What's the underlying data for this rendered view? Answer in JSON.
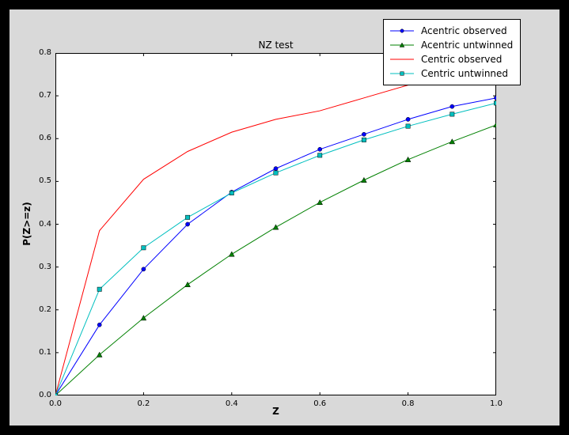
{
  "window": {
    "background_color": "#000000",
    "figure_background_color": "#d9d9d9",
    "plot_background_color": "#ffffff"
  },
  "chart_data": {
    "type": "line",
    "title": "NZ test",
    "xlabel": "Z",
    "ylabel": "P(Z>=z)",
    "xlim": [
      0.0,
      1.0
    ],
    "ylim": [
      0.0,
      0.8
    ],
    "xticks": [
      0.0,
      0.2,
      0.4,
      0.6,
      0.8,
      1.0
    ],
    "yticks": [
      0.0,
      0.1,
      0.2,
      0.3,
      0.4,
      0.5,
      0.6,
      0.7,
      0.8
    ],
    "grid": false,
    "legend_position": "top-right",
    "x": [
      0.0,
      0.1,
      0.2,
      0.3,
      0.4,
      0.5,
      0.6,
      0.7,
      0.8,
      0.9,
      1.0
    ],
    "series": [
      {
        "name": "Acentric observed",
        "color": "#0000ff",
        "marker": "circle",
        "values": [
          0.0,
          0.165,
          0.295,
          0.4,
          0.475,
          0.53,
          0.575,
          0.61,
          0.645,
          0.675,
          0.695
        ]
      },
      {
        "name": "Acentric untwinned",
        "color": "#008000",
        "marker": "triangle",
        "values": [
          0.0,
          0.095,
          0.181,
          0.259,
          0.33,
          0.393,
          0.451,
          0.503,
          0.551,
          0.593,
          0.632
        ]
      },
      {
        "name": "Centric observed",
        "color": "#ff0000",
        "marker": "none",
        "values": [
          0.0,
          0.385,
          0.505,
          0.57,
          0.615,
          0.645,
          0.665,
          0.695,
          0.725,
          0.75,
          0.775
        ]
      },
      {
        "name": "Centric untwinned",
        "color": "#00bfbf",
        "marker": "square",
        "values": [
          0.0,
          0.248,
          0.345,
          0.416,
          0.473,
          0.52,
          0.561,
          0.597,
          0.629,
          0.657,
          0.683
        ]
      }
    ]
  }
}
